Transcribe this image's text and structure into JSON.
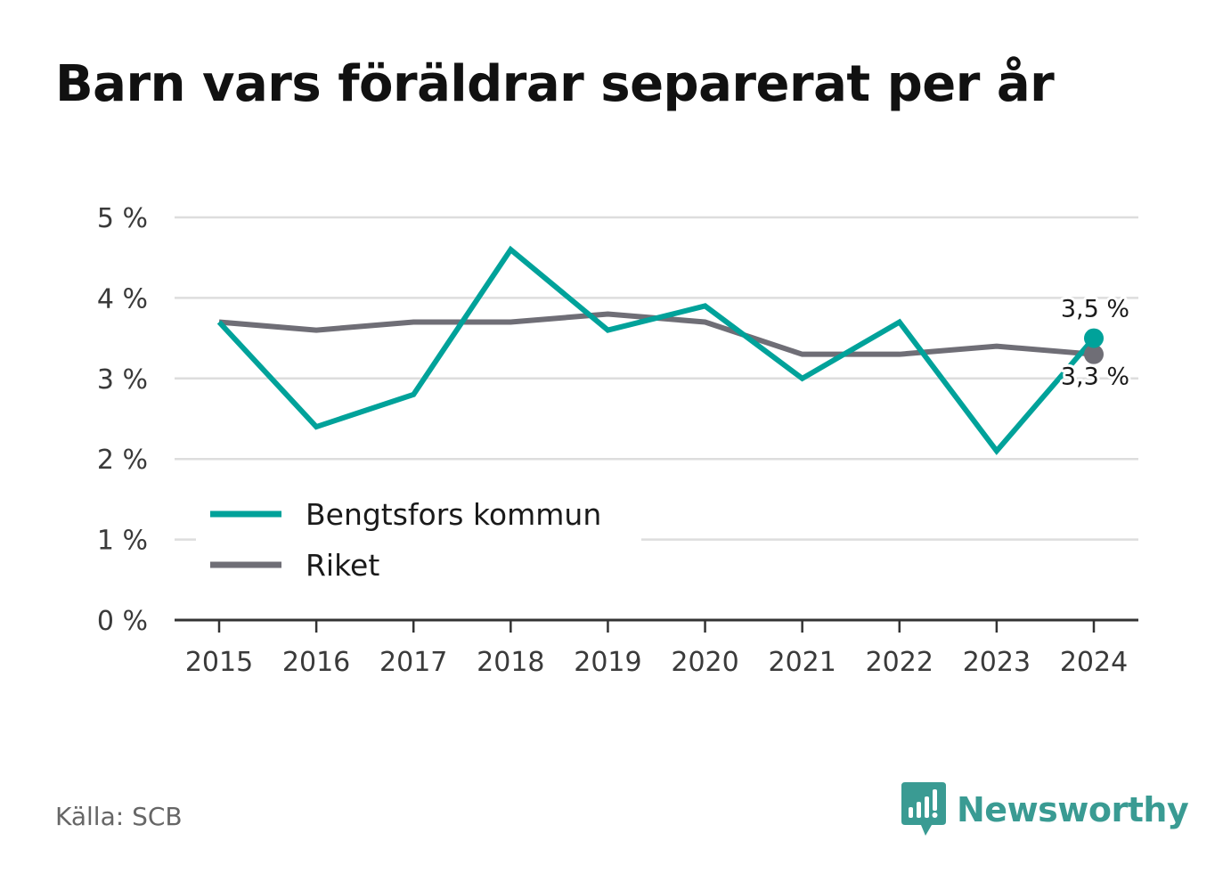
{
  "title": "Barn vars föräldrar separerat per år",
  "source": "Källa: SCB",
  "brand": "Newsworthy",
  "colors": {
    "kommun": "#00a29a",
    "riket": "#6f6e76",
    "grid": "#dddddd",
    "axis": "#333333",
    "brand": "#3a9b93"
  },
  "chart_data": {
    "type": "line",
    "x": [
      2015,
      2016,
      2017,
      2018,
      2019,
      2020,
      2021,
      2022,
      2023,
      2024
    ],
    "series": [
      {
        "name": "Bengtsfors kommun",
        "values": [
          3.7,
          2.4,
          2.8,
          4.6,
          3.6,
          3.9,
          3.0,
          3.7,
          2.1,
          3.5
        ]
      },
      {
        "name": "Riket",
        "values": [
          3.7,
          3.6,
          3.7,
          3.7,
          3.8,
          3.7,
          3.3,
          3.3,
          3.4,
          3.3
        ]
      }
    ],
    "ylim": [
      0,
      5
    ],
    "yticks": [
      "0 %",
      "1 %",
      "2 %",
      "3 %",
      "4 %",
      "5 %"
    ],
    "xticks": [
      "2015",
      "2016",
      "2017",
      "2018",
      "2019",
      "2020",
      "2021",
      "2022",
      "2023",
      "2024"
    ],
    "end_labels": [
      "3,5 %",
      "3,3 %"
    ],
    "grid": true,
    "legend": "bottom-left"
  }
}
